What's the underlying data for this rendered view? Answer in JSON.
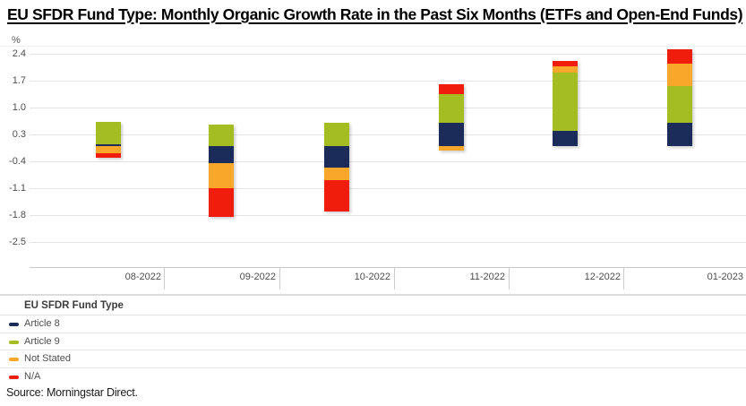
{
  "title": "EU SFDR Fund Type: Monthly Organic Growth Rate in the Past Six Months (ETFs and Open-End Funds)",
  "source": "Source: Morningstar Direct.",
  "axis": {
    "unit_label": "%"
  },
  "legend": {
    "header": "EU SFDR Fund Type"
  },
  "chart_data": {
    "type": "bar",
    "stacked": true,
    "title": "EU SFDR Fund Type: Monthly Organic Growth Rate in the Past Six Months (ETFs and Open-End Funds)",
    "xlabel": "",
    "ylabel": "%",
    "categories": [
      "08-2022",
      "09-2022",
      "10-2022",
      "11-2022",
      "12-2022",
      "01-2023"
    ],
    "series": [
      {
        "name": "Article 8",
        "color": "#1B2C5B",
        "values": [
          0.05,
          -0.44,
          -0.57,
          0.61,
          0.38,
          0.61
        ]
      },
      {
        "name": "Article 9",
        "color": "#A3BD23",
        "values": [
          0.57,
          0.56,
          0.61,
          0.74,
          1.52,
          0.96
        ]
      },
      {
        "name": "Not Stated",
        "color": "#F9A72B",
        "values": [
          -0.18,
          -0.66,
          -0.32,
          -0.11,
          0.17,
          0.58
        ]
      },
      {
        "name": "N/A",
        "color": "#F01D0D",
        "values": [
          -0.12,
          -0.75,
          -0.82,
          0.25,
          0.14,
          0.37
        ]
      }
    ],
    "y_ticks": [
      2.4,
      1.7,
      1.0,
      0.3,
      -0.4,
      -1.1,
      -1.8,
      -2.5
    ],
    "ylim": [
      -3.15,
      2.59
    ],
    "grid": true,
    "legend_position": "bottom"
  }
}
